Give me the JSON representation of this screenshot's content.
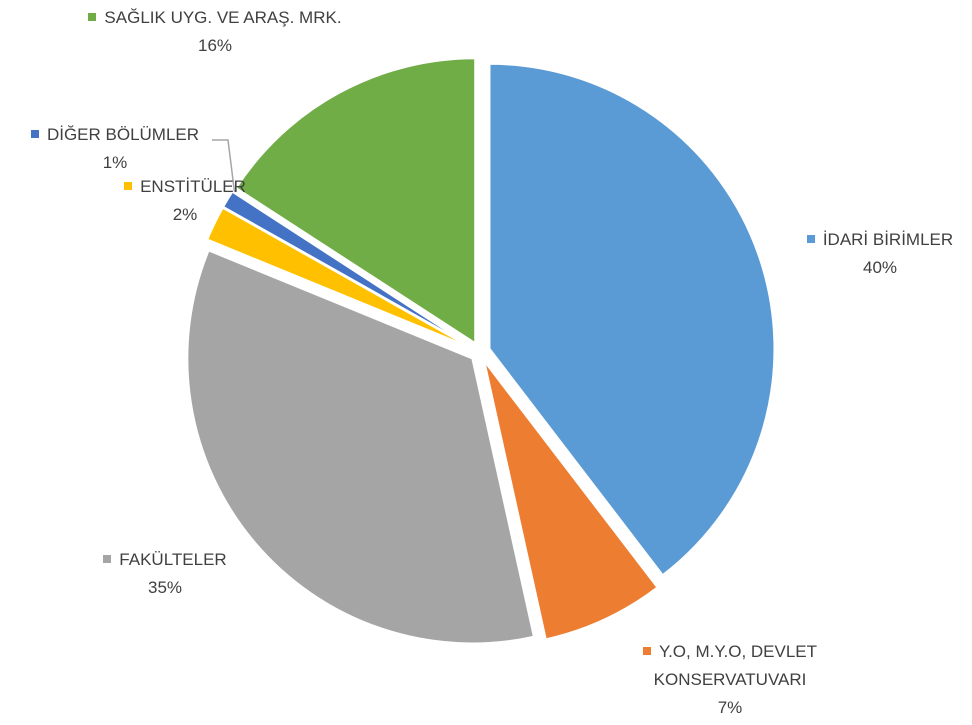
{
  "chart_data": {
    "type": "pie",
    "categories": [
      "İDARİ BİRİMLER",
      "Y.O, M.Y.O, DEVLET KONSERVATUVARI",
      "FAKÜLTELER",
      "ENSTİTÜLER",
      "DİĞER BÖLÜMLER",
      "SAĞLIK UYG. VE ARAŞ. MRK."
    ],
    "values": [
      40,
      7,
      35,
      2,
      1,
      16
    ],
    "value_labels": [
      "40%",
      "7%",
      "35%",
      "2%",
      "1%",
      "16%"
    ],
    "colors": [
      "#5b9bd5",
      "#ed7d31",
      "#a5a5a5",
      "#ffc000",
      "#4472c4",
      "#70ad47"
    ]
  }
}
